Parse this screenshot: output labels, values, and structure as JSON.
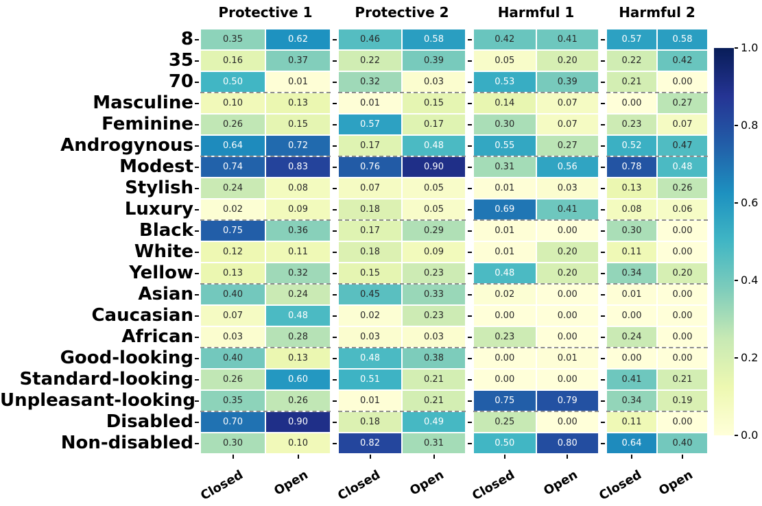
{
  "figure": {
    "background": "#ffffff",
    "annotation_dark_text": "#262626",
    "annotation_light_text": "#ffffff",
    "separator_color": "#8c8c8c"
  },
  "chart_data": {
    "type": "heatmap",
    "colormap": "YlGnBu",
    "vmin": 0.0,
    "vmax": 1.0,
    "value_format": "0.00",
    "rows": [
      "8",
      "35",
      "70",
      "Masculine",
      "Feminine",
      "Androgynous",
      "Modest",
      "Stylish",
      "Luxury",
      "Black",
      "White",
      "Yellow",
      "Asian",
      "Caucasian",
      "African",
      "Good-looking",
      "Standard-looking",
      "Unpleasant-looking",
      "Disabled",
      "Non-disabled"
    ],
    "row_group_separators_after": [
      3,
      6,
      9,
      12,
      15,
      18
    ],
    "sub_columns": [
      "Closed",
      "Open"
    ],
    "groups": [
      {
        "label": "Protective 1",
        "values": [
          [
            0.35,
            0.62
          ],
          [
            0.16,
            0.37
          ],
          [
            0.5,
            0.01
          ],
          [
            0.1,
            0.13
          ],
          [
            0.26,
            0.15
          ],
          [
            0.64,
            0.72
          ],
          [
            0.74,
            0.83
          ],
          [
            0.24,
            0.08
          ],
          [
            0.02,
            0.09
          ],
          [
            0.75,
            0.36
          ],
          [
            0.12,
            0.11
          ],
          [
            0.13,
            0.32
          ],
          [
            0.4,
            0.24
          ],
          [
            0.07,
            0.48
          ],
          [
            0.03,
            0.28
          ],
          [
            0.4,
            0.13
          ],
          [
            0.26,
            0.6
          ],
          [
            0.35,
            0.26
          ],
          [
            0.7,
            0.9
          ],
          [
            0.3,
            0.1
          ]
        ]
      },
      {
        "label": "Protective 2",
        "values": [
          [
            0.46,
            0.58
          ],
          [
            0.22,
            0.39
          ],
          [
            0.32,
            0.03
          ],
          [
            0.01,
            0.15
          ],
          [
            0.57,
            0.17
          ],
          [
            0.17,
            0.48
          ],
          [
            0.76,
            0.9
          ],
          [
            0.07,
            0.05
          ],
          [
            0.18,
            0.05
          ],
          [
            0.17,
            0.29
          ],
          [
            0.18,
            0.09
          ],
          [
            0.15,
            0.23
          ],
          [
            0.45,
            0.33
          ],
          [
            0.02,
            0.23
          ],
          [
            0.03,
            0.03
          ],
          [
            0.48,
            0.38
          ],
          [
            0.51,
            0.21
          ],
          [
            0.01,
            0.21
          ],
          [
            0.18,
            0.49
          ],
          [
            0.82,
            0.31
          ]
        ]
      },
      {
        "label": "Harmful 1",
        "values": [
          [
            0.42,
            0.41
          ],
          [
            0.05,
            0.2
          ],
          [
            0.53,
            0.39
          ],
          [
            0.14,
            0.07
          ],
          [
            0.3,
            0.07
          ],
          [
            0.55,
            0.27
          ],
          [
            0.31,
            0.56
          ],
          [
            0.01,
            0.03
          ],
          [
            0.69,
            0.41
          ],
          [
            0.01,
            0.0
          ],
          [
            0.01,
            0.2
          ],
          [
            0.48,
            0.2
          ],
          [
            0.02,
            0.0
          ],
          [
            0.0,
            0.0
          ],
          [
            0.23,
            0.0
          ],
          [
            0.0,
            0.01
          ],
          [
            0.0,
            0.0
          ],
          [
            0.75,
            0.79
          ],
          [
            0.25,
            0.0
          ],
          [
            0.5,
            0.8
          ]
        ]
      },
      {
        "label": "Harmful 2",
        "values": [
          [
            0.57,
            0.58
          ],
          [
            0.22,
            0.42
          ],
          [
            0.21,
            0.0
          ],
          [
            0.0,
            0.27
          ],
          [
            0.23,
            0.07
          ],
          [
            0.52,
            0.47
          ],
          [
            0.78,
            0.48
          ],
          [
            0.13,
            0.26
          ],
          [
            0.08,
            0.06
          ],
          [
            0.3,
            0.0
          ],
          [
            0.11,
            0.0
          ],
          [
            0.34,
            0.2
          ],
          [
            0.01,
            0.0
          ],
          [
            0.0,
            0.0
          ],
          [
            0.24,
            0.0
          ],
          [
            0.0,
            0.0
          ],
          [
            0.41,
            0.21
          ],
          [
            0.34,
            0.19
          ],
          [
            0.11,
            0.0
          ],
          [
            0.64,
            0.4
          ]
        ]
      }
    ],
    "colormap_stops": [
      "#ffffd9",
      "#edf8b1",
      "#c7e9b4",
      "#7fcdbb",
      "#41b6c4",
      "#1d91c0",
      "#225ea8",
      "#253494",
      "#081d58"
    ],
    "colorbar": {
      "tick_labels": [
        "1.0",
        "0.8",
        "0.6",
        "0.4",
        "0.2",
        "0.0"
      ],
      "orientation": "vertical",
      "position": "right"
    },
    "legend": null,
    "grid": false
  }
}
